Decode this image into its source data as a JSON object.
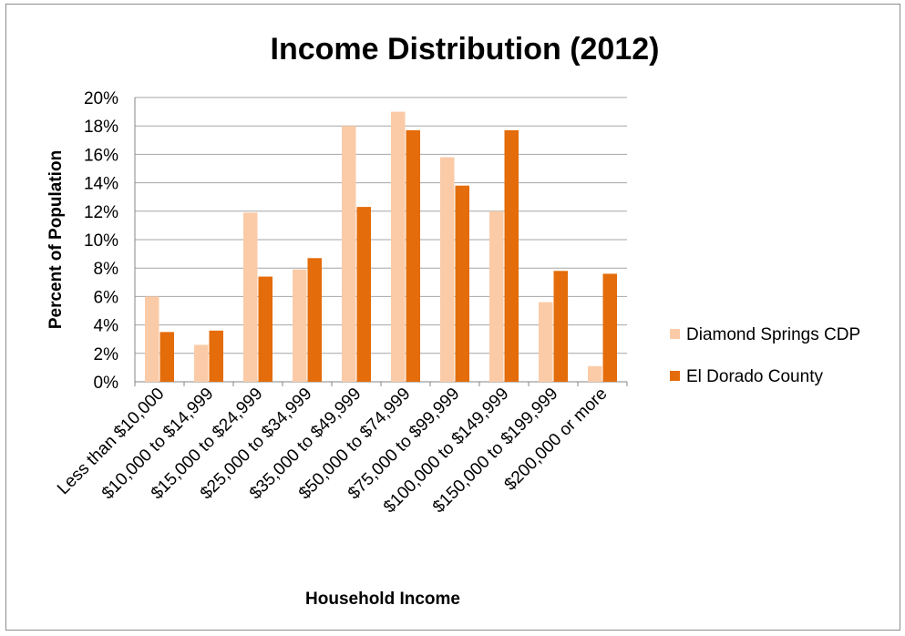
{
  "chart_data": {
    "type": "bar",
    "title": "Income Distribution (2012)",
    "xlabel": "Household Income",
    "ylabel": "Percent of Population",
    "categories": [
      "Less than $10,000",
      "$10,000 to $14,999",
      "$15,000 to $24,999",
      "$25,000 to $34,999",
      "$35,000 to $49,999",
      "$50,000 to $74,999",
      "$75,000 to $99,999",
      "$100,000 to $149,999",
      "$150,000 to $199,999",
      "$200,000 or more"
    ],
    "series": [
      {
        "name": "Diamond Springs CDP",
        "color": "#fbcba7",
        "values": [
          6.0,
          2.6,
          11.9,
          7.9,
          18.0,
          19.0,
          15.8,
          12.0,
          5.6,
          1.1
        ]
      },
      {
        "name": "El Dorado County",
        "color": "#e46c0a",
        "values": [
          3.5,
          3.6,
          7.4,
          8.7,
          12.3,
          17.7,
          13.8,
          17.7,
          7.8,
          7.6
        ]
      }
    ],
    "ylim": [
      0,
      20
    ],
    "yticks": [
      0,
      2,
      4,
      6,
      8,
      10,
      12,
      14,
      16,
      18,
      20
    ],
    "ytick_suffix": "%",
    "grid": true,
    "legend_position": "right"
  }
}
